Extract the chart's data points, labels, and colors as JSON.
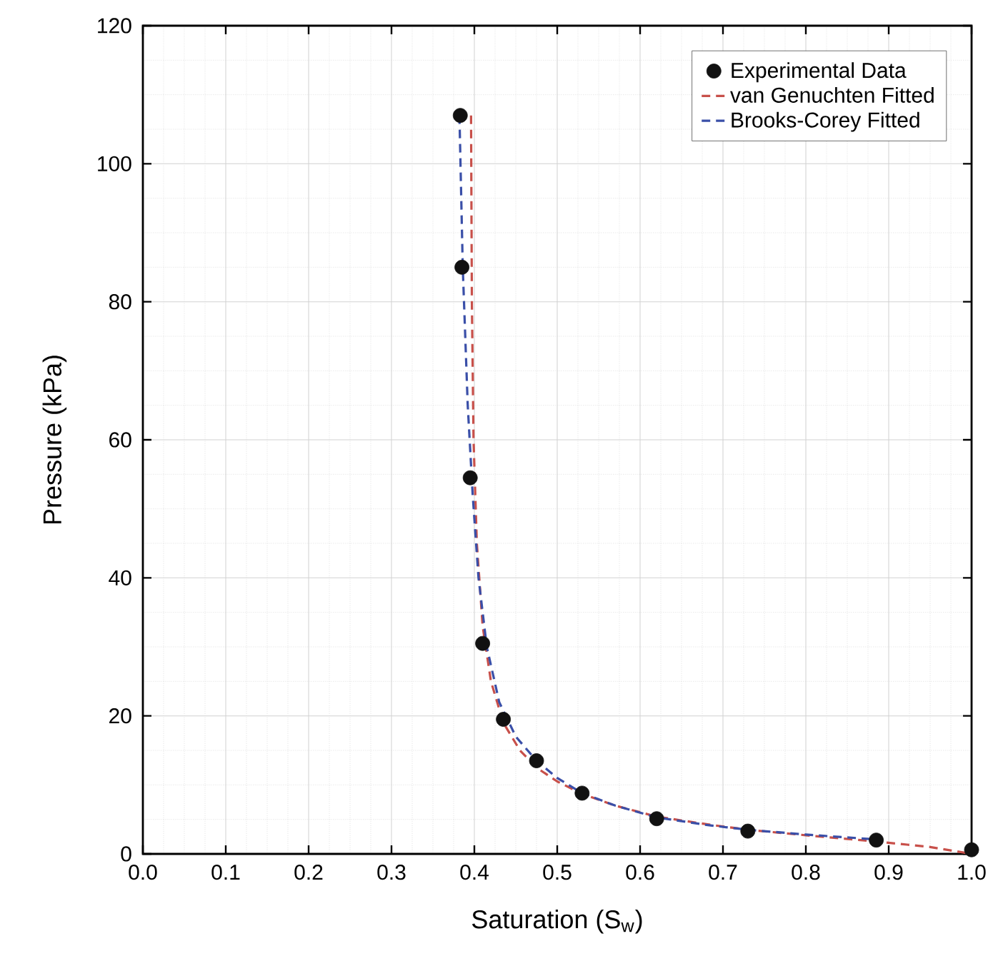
{
  "chart_data": {
    "type": "scatter",
    "xlabel": "Saturation (S$_{w}$)",
    "ylabel": "Pressure (kPa)",
    "xlim": [
      0,
      1
    ],
    "ylim": [
      0,
      120
    ],
    "xticks": [
      {
        "value": 0,
        "label": "0.0"
      },
      {
        "value": 0.1,
        "label": "0.1"
      },
      {
        "value": 0.2,
        "label": "0.2"
      },
      {
        "value": 0.3,
        "label": "0.3"
      },
      {
        "value": 0.4,
        "label": "0.4"
      },
      {
        "value": 0.5,
        "label": "0.5"
      },
      {
        "value": 0.6,
        "label": "0.6"
      },
      {
        "value": 0.7,
        "label": "0.7"
      },
      {
        "value": 0.8,
        "label": "0.8"
      },
      {
        "value": 0.9,
        "label": "0.9"
      },
      {
        "value": 1,
        "label": "1.0"
      }
    ],
    "yticks": [
      0,
      20,
      40,
      60,
      80,
      100,
      120
    ],
    "grid": true,
    "legend": "top right",
    "series": [
      {
        "name": "Experimental Data",
        "marker": "circle",
        "color": "#111111",
        "x": [
          0.383,
          0.385,
          0.395,
          0.41,
          0.435,
          0.475,
          0.53,
          0.62,
          0.73,
          0.885,
          1.0
        ],
        "values": [
          107,
          85,
          54.5,
          30.5,
          19.5,
          13.5,
          8.8,
          5.1,
          3.3,
          2.0,
          0.6
        ]
      },
      {
        "name": "van Genuchten Fitted",
        "type": "line",
        "line_style": "dashed",
        "color": "#c8504a",
        "x": [
          0.396,
          0.397,
          0.399,
          0.403,
          0.41,
          0.42,
          0.435,
          0.455,
          0.475,
          0.5,
          0.53,
          0.57,
          0.62,
          0.68,
          0.73,
          0.8,
          0.885,
          0.95,
          1.0
        ],
        "values": [
          107,
          80,
          60,
          45,
          33,
          25,
          19,
          15,
          12.5,
          10.5,
          8.7,
          7,
          5.4,
          4.3,
          3.5,
          2.7,
          1.8,
          1,
          0
        ]
      },
      {
        "name": "Brooks-Corey Fitted",
        "type": "line",
        "line_style": "dashed",
        "color": "#3a4fa8",
        "x": [
          0.382,
          0.386,
          0.392,
          0.398,
          0.405,
          0.415,
          0.43,
          0.45,
          0.475,
          0.5,
          0.53,
          0.57,
          0.62,
          0.68,
          0.73,
          0.8,
          0.885
        ],
        "values": [
          107,
          85,
          65,
          52,
          40,
          30,
          22,
          17,
          13.5,
          11,
          8.8,
          7,
          5.3,
          4.2,
          3.5,
          2.8,
          2.1
        ]
      }
    ]
  }
}
